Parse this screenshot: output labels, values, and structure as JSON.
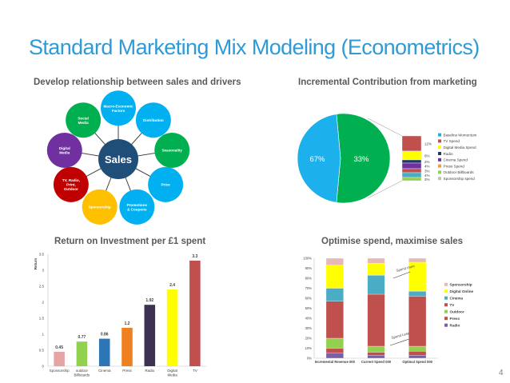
{
  "slide": {
    "title": "Standard Marketing Mix Modeling (Econometrics)",
    "page_number": "4"
  },
  "q1": {
    "title": "Develop relationship between sales and drivers",
    "center": {
      "label": "Sales",
      "color": "#1f4e79"
    },
    "nodes": [
      {
        "label": "Macro-Economic Factors",
        "color": "#00b0f0"
      },
      {
        "label": "Distribution",
        "color": "#00b0f0"
      },
      {
        "label": "Seasonality",
        "color": "#00b050"
      },
      {
        "label": "Price",
        "color": "#00b0f0"
      },
      {
        "label": "Promotions & Coupons",
        "color": "#00b0f0"
      },
      {
        "label": "Sponsorship",
        "color": "#ffc000"
      },
      {
        "label": "TV, Radio, Print, Outdoor",
        "color": "#c00000"
      },
      {
        "label": "Digital Media",
        "color": "#7030a0"
      },
      {
        "label": "Social Media",
        "color": "#00b050"
      }
    ]
  },
  "q2": {
    "title": "Incremental Contribution from marketing",
    "pie": [
      {
        "label": "67%",
        "value": 67,
        "color": "#1cb0ec"
      },
      {
        "label": "33%",
        "value": 33,
        "color": "#00b050"
      }
    ],
    "stack": [
      {
        "label": "12%",
        "color": "#c0504d"
      },
      {
        "label": "6%",
        "color": "#ffff00"
      },
      {
        "label": "2%",
        "color": "#1f3864"
      },
      {
        "label": "4%",
        "color": "#7030a0"
      },
      {
        "label": "3%",
        "color": "#c0504d"
      },
      {
        "label": "4%",
        "color": "#4bacc6"
      },
      {
        "label": "2%",
        "color": "#92d050"
      }
    ],
    "legend": [
      {
        "label": "Baseline Momentum",
        "color": "#1cb0ec"
      },
      {
        "label": "TV Spend",
        "color": "#c0504d"
      },
      {
        "label": "Digital Media Spend",
        "color": "#ffff00"
      },
      {
        "label": "Radio",
        "color": "#1f3864"
      },
      {
        "label": "Cinema Spend",
        "color": "#7030a0"
      },
      {
        "label": "Press Spend",
        "color": "#f79646"
      },
      {
        "label": "Outdoor Billboards",
        "color": "#92d050"
      },
      {
        "label": "Sponsorship spend",
        "color": "#c0c0c0"
      }
    ]
  },
  "q3": {
    "title": "Return on Investment per £1 spent",
    "chart_data": {
      "type": "bar",
      "ylabel": "Return",
      "ylim": [
        0,
        3.5
      ],
      "yticks": [
        "0",
        "0.5",
        "1",
        "1.5",
        "2",
        "2.5",
        "3",
        "3.5"
      ],
      "categories": [
        "Sponsorship",
        "outdoor Billboards",
        "Cinema",
        "Press",
        "Radio",
        "Digital Media",
        "TV"
      ],
      "values": [
        0.45,
        0.77,
        0.86,
        1.2,
        1.92,
        2.4,
        3.3
      ],
      "value_labels": [
        "0.45",
        "0.77",
        "0.86",
        "1.2",
        "1.92",
        "2.4",
        "3.3"
      ],
      "colors": [
        "#e6a4a4",
        "#92d050",
        "#2e75b6",
        "#f07f1f",
        "#3f3151",
        "#ffff00",
        "#c0504d"
      ]
    }
  },
  "q4": {
    "title": "Optimise spend, maximise sales",
    "chart_data": {
      "type": "bar",
      "stacked": true,
      "ylim": [
        0,
        100
      ],
      "yticks": [
        "0%",
        "10%",
        "20%",
        "30%",
        "40%",
        "50%",
        "60%",
        "70%",
        "80%",
        "90%",
        "100%"
      ],
      "categories": [
        "Incremental Revenue 000",
        "Current Spend 000",
        "Optimal Spend 000"
      ],
      "series": [
        {
          "name": "Radio",
          "color": "#7b5fa5",
          "values": [
            5,
            3,
            3
          ]
        },
        {
          "name": "Press",
          "color": "#c0504d",
          "values": [
            5,
            3,
            4
          ]
        },
        {
          "name": "Outdoor",
          "color": "#92d050",
          "values": [
            10,
            6,
            5
          ]
        },
        {
          "name": "TV",
          "color": "#c0504d",
          "values": [
            37,
            52,
            50
          ]
        },
        {
          "name": "Cinema",
          "color": "#4bacc6",
          "values": [
            13,
            19,
            5
          ]
        },
        {
          "name": "Digital Online",
          "color": "#ffff00",
          "values": [
            23,
            12,
            29
          ]
        },
        {
          "name": "Sponsorship",
          "color": "#e6b9b8",
          "values": [
            7,
            5,
            4
          ]
        }
      ],
      "annotations": [
        "Spend more",
        "Spend Less"
      ]
    }
  }
}
